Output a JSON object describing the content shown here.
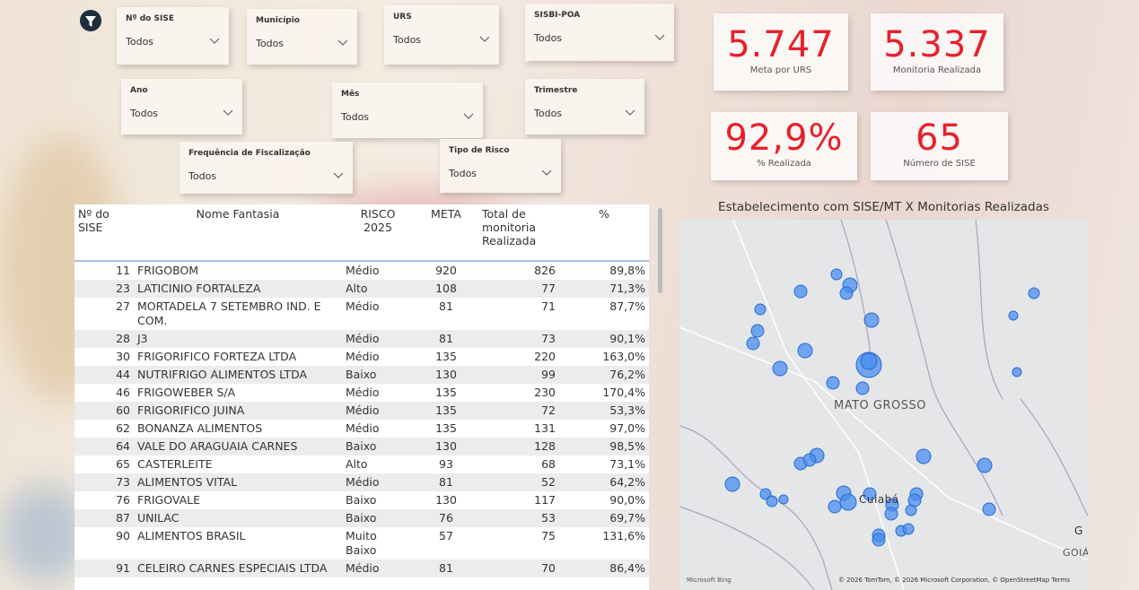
{
  "filters": [
    {
      "label": "Nº do SISE",
      "value": "Todos"
    },
    {
      "label": "Município",
      "value": "Todos"
    },
    {
      "label": "URS",
      "value": "Todos"
    },
    {
      "label": "SISBI-POA",
      "value": "Todos"
    },
    {
      "label": "Ano",
      "value": "Todos"
    },
    {
      "label": "Mês",
      "value": "Todos"
    },
    {
      "label": "Trimestre",
      "value": "Todos"
    },
    {
      "label": "Frequência de Fiscalização",
      "value": "Todos"
    },
    {
      "label": "Tipo de Risco",
      "value": "Todos"
    }
  ],
  "kpis": [
    {
      "value": "5.747",
      "label": "Meta por URS"
    },
    {
      "value": "5.337",
      "label": "Monitoria Realizada"
    },
    {
      "value": "92,9%",
      "label": "% Realizada"
    },
    {
      "value": "65",
      "label": "Número de SISE"
    }
  ],
  "table": {
    "columns": [
      "Nº do SISE",
      "Nome Fantasia",
      "RISCO 2025",
      "META",
      "Total de monitoria Realizada",
      "%"
    ],
    "rows": [
      [
        11,
        "FRIGOBOM",
        "Médio",
        920,
        826,
        "89,8%"
      ],
      [
        23,
        "LATICINIO FORTALEZA",
        "Alto",
        108,
        77,
        "71,3%"
      ],
      [
        27,
        "MORTADELA 7 SETEMBRO IND. E COM.",
        "Médio",
        81,
        71,
        "87,7%"
      ],
      [
        28,
        "J3",
        "Médio",
        81,
        73,
        "90,1%"
      ],
      [
        30,
        "FRIGORIFICO FORTEZA LTDA",
        "Médio",
        135,
        220,
        "163,0%"
      ],
      [
        44,
        "NUTRIFRIGO ALIMENTOS LTDA",
        "Baixo",
        130,
        99,
        "76,2%"
      ],
      [
        46,
        "FRIGOWEBER S/A",
        "Médio",
        135,
        230,
        "170,4%"
      ],
      [
        60,
        "FRIGORIFICO JUINA",
        "Médio",
        135,
        72,
        "53,3%"
      ],
      [
        62,
        "BONANZA ALIMENTOS",
        "Médio",
        135,
        131,
        "97,0%"
      ],
      [
        64,
        "VALE DO ARAGUAIA CARNES",
        "Baixo",
        130,
        128,
        "98,5%"
      ],
      [
        65,
        "CASTERLEITE",
        "Alto",
        93,
        68,
        "73,1%"
      ],
      [
        73,
        "ALIMENTOS VITAL",
        "Médio",
        81,
        52,
        "64,2%"
      ],
      [
        76,
        "FRIGOVALE",
        "Baixo",
        130,
        117,
        "90,0%"
      ],
      [
        87,
        "UNILAC",
        "Baixo",
        76,
        53,
        "69,7%"
      ],
      [
        90,
        "ALIMENTOS BRASIL",
        "Muito Baixo",
        57,
        75,
        "131,6%"
      ],
      [
        91,
        "CELEIRO CARNES ESPECIAIS LTDA",
        "Médio",
        81,
        70,
        "86,4%"
      ]
    ]
  },
  "map": {
    "title": "Estabelecimento com SISE/MT X Monitorias Realizadas",
    "labels": [
      "MATO GROSSO",
      "Cuiabá",
      "G",
      "GOIÁ"
    ],
    "provider": "Microsoft Bing",
    "attribution": "© 2026 TomTom, © 2026 Microsoft Corporation, © OpenStreetMap  Terms"
  }
}
